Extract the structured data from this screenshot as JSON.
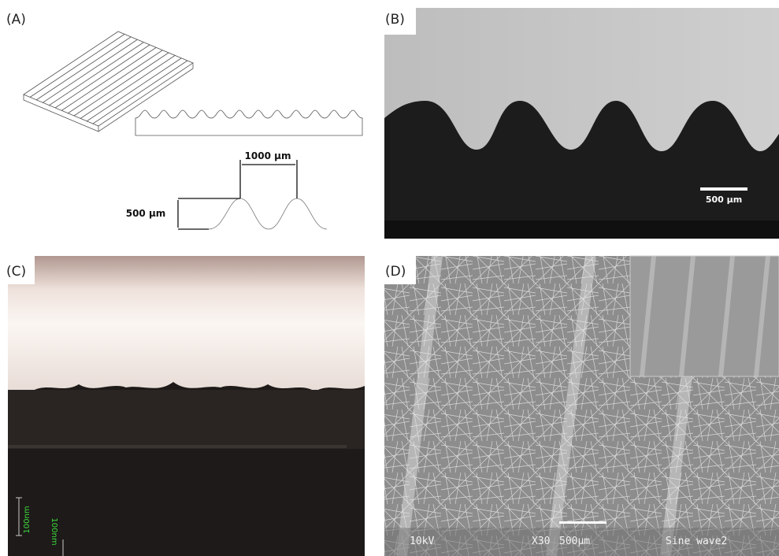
{
  "panels": [
    {
      "label": "(A)",
      "period_label": "1000 µm",
      "amplitude_label": "500 µm"
    },
    {
      "label": "(B)",
      "scale_label": "500 µm"
    },
    {
      "label": "(C)",
      "scale_labels": [
        "100nm",
        "100nm"
      ]
    },
    {
      "label": "(D)",
      "footer": {
        "voltage": "10kV",
        "magnification": "X30",
        "scale": "500µm",
        "name": "Sine wave2"
      }
    }
  ]
}
